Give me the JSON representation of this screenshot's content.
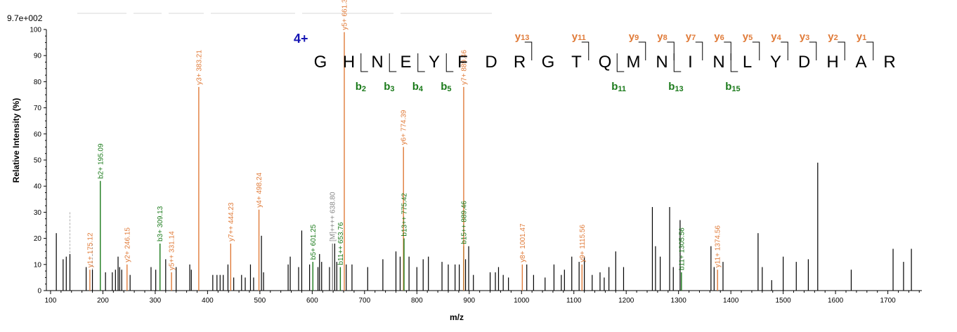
{
  "chart_data": {
    "type": "bar",
    "max_intensity_label": "9.7e+002",
    "xlabel": "m/z",
    "ylabel": "Relative   Intensity (%)",
    "xlim": [
      92,
      1765
    ],
    "ylim": [
      0,
      100
    ],
    "x_ticks": [
      "100",
      "200",
      "300",
      "400",
      "500",
      "600",
      "700",
      "800",
      "900",
      "1000",
      "1100",
      "1200",
      "1300",
      "1400",
      "1500",
      "1600",
      "1700"
    ],
    "x_tick_values": [
      100,
      200,
      300,
      400,
      500,
      600,
      700,
      800,
      900,
      1000,
      1100,
      1200,
      1300,
      1400,
      1500,
      1600,
      1700
    ],
    "y_ticks": [
      "0",
      "10",
      "20",
      "30",
      "40",
      "50",
      "60",
      "70",
      "80",
      "90",
      "100"
    ],
    "y_tick_values": [
      0,
      10,
      20,
      30,
      40,
      50,
      60,
      70,
      80,
      90,
      100
    ],
    "colors": {
      "b": "#1a7a1a",
      "y": "#e07b39",
      "other": "#000000",
      "precursor": "#888888",
      "charge": "#1414b4"
    },
    "peptide": {
      "charge_label": "4+",
      "sequence": [
        "G",
        "H",
        "N",
        "E",
        "Y",
        "F",
        "D",
        "R",
        "G",
        "T",
        "Q",
        "M",
        "N",
        "I",
        "N",
        "L",
        "Y",
        "D",
        "H",
        "A",
        "R"
      ],
      "y_ions": [
        {
          "name": "y",
          "num": "13",
          "after": 8
        },
        {
          "name": "y",
          "num": "11",
          "after": 10
        },
        {
          "name": "y",
          "num": "9",
          "after": 12
        },
        {
          "name": "y",
          "num": "8",
          "after": 13
        },
        {
          "name": "y",
          "num": "7",
          "after": 14
        },
        {
          "name": "y",
          "num": "6",
          "after": 15
        },
        {
          "name": "y",
          "num": "5",
          "after": 16
        },
        {
          "name": "y",
          "num": "4",
          "after": 17
        },
        {
          "name": "y",
          "num": "3",
          "after": 18
        },
        {
          "name": "y",
          "num": "2",
          "after": 19
        },
        {
          "name": "y",
          "num": "1",
          "after": 20
        }
      ],
      "b_ions": [
        {
          "name": "b",
          "num": "2",
          "after": 2
        },
        {
          "name": "b",
          "num": "3",
          "after": 3
        },
        {
          "name": "b",
          "num": "4",
          "after": 4
        },
        {
          "name": "b",
          "num": "5",
          "after": 5
        },
        {
          "name": "b",
          "num": "11",
          "after": 11
        },
        {
          "name": "b",
          "num": "13",
          "after": 13
        },
        {
          "name": "b",
          "num": "15",
          "after": 15
        }
      ]
    },
    "labeled_peaks": [
      {
        "mz": 175.12,
        "intensity": 8,
        "label": "y1+ 175.12",
        "type": "y"
      },
      {
        "mz": 195.09,
        "intensity": 42,
        "label": "b2+ 195.09",
        "type": "b"
      },
      {
        "mz": 246.15,
        "intensity": 10,
        "label": "y2+ 246.15",
        "type": "y"
      },
      {
        "mz": 309.13,
        "intensity": 18,
        "label": "b3+ 309.13",
        "type": "b"
      },
      {
        "mz": 331.14,
        "intensity": 7,
        "label": "y5++ 331.14",
        "type": "y"
      },
      {
        "mz": 383.21,
        "intensity": 78,
        "label": "y3+ 383.21",
        "type": "y"
      },
      {
        "mz": 444.23,
        "intensity": 18,
        "label": "y7++ 444.23",
        "type": "y"
      },
      {
        "mz": 498.24,
        "intensity": 31,
        "label": "y4+ 498.24",
        "type": "y"
      },
      {
        "mz": 601.25,
        "intensity": 11,
        "label": "b5+ 601.25",
        "type": "b"
      },
      {
        "mz": 638.8,
        "intensity": 18,
        "label": "[M]++++ 638.80",
        "type": "precursor"
      },
      {
        "mz": 653.76,
        "intensity": 9,
        "label": "b11++ 653.76",
        "type": "b"
      },
      {
        "mz": 661.3,
        "intensity": 99,
        "label": "y5+ 661.30",
        "type": "y"
      },
      {
        "mz": 774.39,
        "intensity": 55,
        "label": "y6+ 774.39",
        "type": "y"
      },
      {
        "mz": 775.42,
        "intensity": 20,
        "label": "b13++ 775.42",
        "type": "b"
      },
      {
        "mz": 889.46,
        "intensity": 17,
        "label": "b15++ 889.46",
        "type": "b"
      },
      {
        "mz": 889.46,
        "intensity": 78,
        "label": "y7+ 889.46",
        "type": "y"
      },
      {
        "mz": 1001.47,
        "intensity": 10,
        "label": "y8+ 1001.47",
        "type": "y"
      },
      {
        "mz": 1115.56,
        "intensity": 10,
        "label": "y9+ 1115.56",
        "type": "y"
      },
      {
        "mz": 1305.56,
        "intensity": 7,
        "label": "b11+ 1305.56",
        "type": "b"
      },
      {
        "mz": 1374.56,
        "intensity": 8,
        "label": "y11+ 1374.56",
        "type": "y"
      }
    ],
    "unlabeled_peaks": [
      {
        "mz": 111,
        "intensity": 22
      },
      {
        "mz": 124,
        "intensity": 12
      },
      {
        "mz": 130,
        "intensity": 13
      },
      {
        "mz": 137,
        "intensity": 14
      },
      {
        "mz": 168,
        "intensity": 9
      },
      {
        "mz": 180,
        "intensity": 8
      },
      {
        "mz": 205,
        "intensity": 7
      },
      {
        "mz": 218,
        "intensity": 7
      },
      {
        "mz": 224,
        "intensity": 8
      },
      {
        "mz": 229,
        "intensity": 13
      },
      {
        "mz": 232,
        "intensity": 9
      },
      {
        "mz": 236,
        "intensity": 8
      },
      {
        "mz": 252,
        "intensity": 6
      },
      {
        "mz": 292,
        "intensity": 9
      },
      {
        "mz": 301,
        "intensity": 8
      },
      {
        "mz": 320,
        "intensity": 12
      },
      {
        "mz": 340,
        "intensity": 9
      },
      {
        "mz": 366,
        "intensity": 10
      },
      {
        "mz": 369,
        "intensity": 8
      },
      {
        "mz": 410,
        "intensity": 6
      },
      {
        "mz": 418,
        "intensity": 6
      },
      {
        "mz": 424,
        "intensity": 6
      },
      {
        "mz": 430,
        "intensity": 6
      },
      {
        "mz": 439,
        "intensity": 10
      },
      {
        "mz": 450,
        "intensity": 5
      },
      {
        "mz": 465,
        "intensity": 6
      },
      {
        "mz": 472,
        "intensity": 5
      },
      {
        "mz": 482,
        "intensity": 10
      },
      {
        "mz": 488,
        "intensity": 5
      },
      {
        "mz": 503,
        "intensity": 21
      },
      {
        "mz": 507,
        "intensity": 7
      },
      {
        "mz": 554,
        "intensity": 10
      },
      {
        "mz": 558,
        "intensity": 13
      },
      {
        "mz": 574,
        "intensity": 9
      },
      {
        "mz": 580,
        "intensity": 23
      },
      {
        "mz": 595,
        "intensity": 10
      },
      {
        "mz": 611,
        "intensity": 9
      },
      {
        "mz": 614,
        "intensity": 14
      },
      {
        "mz": 618,
        "intensity": 11
      },
      {
        "mz": 633,
        "intensity": 9
      },
      {
        "mz": 643,
        "intensity": 18
      },
      {
        "mz": 647,
        "intensity": 11
      },
      {
        "mz": 665,
        "intensity": 10
      },
      {
        "mz": 676,
        "intensity": 10
      },
      {
        "mz": 706,
        "intensity": 9
      },
      {
        "mz": 735,
        "intensity": 12
      },
      {
        "mz": 760,
        "intensity": 15
      },
      {
        "mz": 768,
        "intensity": 13
      },
      {
        "mz": 785,
        "intensity": 13
      },
      {
        "mz": 800,
        "intensity": 9
      },
      {
        "mz": 812,
        "intensity": 12
      },
      {
        "mz": 822,
        "intensity": 13
      },
      {
        "mz": 848,
        "intensity": 11
      },
      {
        "mz": 860,
        "intensity": 10
      },
      {
        "mz": 873,
        "intensity": 10
      },
      {
        "mz": 881,
        "intensity": 10
      },
      {
        "mz": 893,
        "intensity": 12
      },
      {
        "mz": 899,
        "intensity": 17
      },
      {
        "mz": 908,
        "intensity": 6
      },
      {
        "mz": 940,
        "intensity": 7
      },
      {
        "mz": 950,
        "intensity": 7
      },
      {
        "mz": 956,
        "intensity": 9
      },
      {
        "mz": 965,
        "intensity": 6
      },
      {
        "mz": 975,
        "intensity": 5
      },
      {
        "mz": 1010,
        "intensity": 10
      },
      {
        "mz": 1023,
        "intensity": 6
      },
      {
        "mz": 1045,
        "intensity": 5
      },
      {
        "mz": 1062,
        "intensity": 10
      },
      {
        "mz": 1076,
        "intensity": 6
      },
      {
        "mz": 1082,
        "intensity": 8
      },
      {
        "mz": 1096,
        "intensity": 13
      },
      {
        "mz": 1110,
        "intensity": 11
      },
      {
        "mz": 1120,
        "intensity": 13
      },
      {
        "mz": 1135,
        "intensity": 6
      },
      {
        "mz": 1150,
        "intensity": 7
      },
      {
        "mz": 1158,
        "intensity": 5
      },
      {
        "mz": 1167,
        "intensity": 9
      },
      {
        "mz": 1180,
        "intensity": 15
      },
      {
        "mz": 1195,
        "intensity": 9
      },
      {
        "mz": 1250,
        "intensity": 32
      },
      {
        "mz": 1256,
        "intensity": 17
      },
      {
        "mz": 1265,
        "intensity": 13
      },
      {
        "mz": 1283,
        "intensity": 32
      },
      {
        "mz": 1290,
        "intensity": 9
      },
      {
        "mz": 1303,
        "intensity": 27
      },
      {
        "mz": 1362,
        "intensity": 17
      },
      {
        "mz": 1368,
        "intensity": 9
      },
      {
        "mz": 1385,
        "intensity": 11
      },
      {
        "mz": 1452,
        "intensity": 22
      },
      {
        "mz": 1460,
        "intensity": 9
      },
      {
        "mz": 1478,
        "intensity": 4
      },
      {
        "mz": 1500,
        "intensity": 13
      },
      {
        "mz": 1525,
        "intensity": 11
      },
      {
        "mz": 1548,
        "intensity": 12
      },
      {
        "mz": 1566,
        "intensity": 49
      },
      {
        "mz": 1630,
        "intensity": 8
      },
      {
        "mz": 1710,
        "intensity": 16
      },
      {
        "mz": 1730,
        "intensity": 11
      },
      {
        "mz": 1745,
        "intensity": 16
      }
    ]
  }
}
